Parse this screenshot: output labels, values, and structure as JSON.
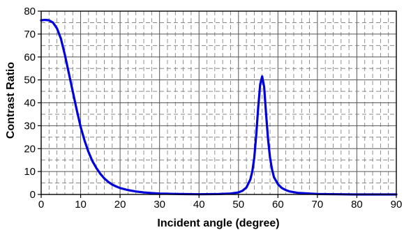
{
  "chart_data": {
    "type": "line",
    "title": "",
    "xlabel": "Incident angle (degree)",
    "ylabel": "Contrast Ratio",
    "xlim": [
      0,
      90
    ],
    "ylim": [
      0,
      80
    ],
    "x_ticks": [
      "0",
      "10",
      "20",
      "30",
      "40",
      "50",
      "60",
      "70",
      "80",
      "90"
    ],
    "y_ticks": [
      "0",
      "10",
      "20",
      "30",
      "40",
      "50",
      "60",
      "70",
      "80"
    ],
    "x_minor_step": 2,
    "y_minor_step": 5,
    "grid": true,
    "grid_style": "dashed",
    "legend": "none",
    "colors": {
      "line": "#0000dd",
      "grid_major": "#555555",
      "grid_minor": "#777777",
      "axis": "#000000"
    },
    "series": [
      {
        "x": [
          0,
          1,
          2,
          3,
          4,
          5,
          6,
          7,
          8,
          9,
          10,
          11,
          12,
          13,
          14,
          15,
          16,
          17,
          18,
          19,
          20,
          22,
          24,
          26,
          28,
          30,
          35,
          40,
          45,
          48,
          50,
          51,
          52,
          53,
          53.5,
          54,
          54.5,
          55,
          55.5,
          56,
          56.5,
          57,
          57.5,
          58,
          58.5,
          59,
          60,
          61,
          62,
          63,
          65,
          70,
          75,
          80,
          85,
          90
        ],
        "y": [
          76,
          76.2,
          76,
          75,
          72.5,
          68,
          61,
          53,
          45,
          37,
          29.5,
          23.5,
          18.5,
          14.5,
          11.5,
          9,
          7,
          5.5,
          4.3,
          3.5,
          2.8,
          1.9,
          1.3,
          0.9,
          0.6,
          0.4,
          0.2,
          0.1,
          0.2,
          0.4,
          0.9,
          1.6,
          3,
          6.5,
          10,
          16,
          26,
          38,
          48,
          51.5,
          47,
          35,
          24,
          16,
          11,
          7.5,
          4.5,
          2.8,
          1.9,
          1.3,
          0.7,
          0.2,
          0.1,
          0,
          0,
          0
        ]
      }
    ]
  }
}
